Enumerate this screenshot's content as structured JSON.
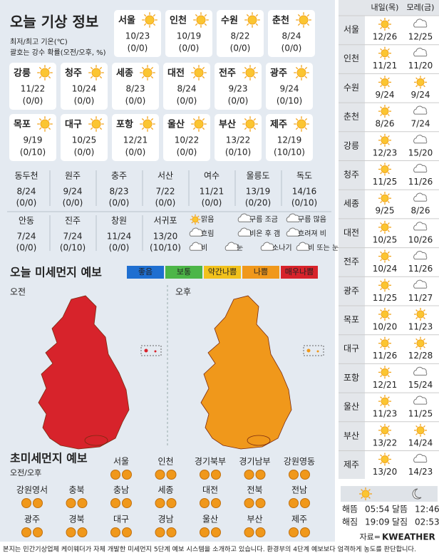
{
  "title": "오늘 기상 정보",
  "notes": [
    "최저/최고 기온(℃)",
    "괄호는 강수 확률(오전/오후, %)"
  ],
  "main_cities": [
    {
      "name": "서울",
      "temp": "10/23",
      "rain": "(0/0)"
    },
    {
      "name": "인천",
      "temp": "10/19",
      "rain": "(0/0)"
    },
    {
      "name": "수원",
      "temp": "8/22",
      "rain": "(0/0)"
    },
    {
      "name": "춘천",
      "temp": "8/24",
      "rain": "(0/0)"
    },
    {
      "name": "강릉",
      "temp": "11/22",
      "rain": "(0/0)"
    },
    {
      "name": "청주",
      "temp": "10/24",
      "rain": "(0/0)"
    },
    {
      "name": "세종",
      "temp": "8/23",
      "rain": "(0/0)"
    },
    {
      "name": "대전",
      "temp": "8/24",
      "rain": "(0/0)"
    },
    {
      "name": "전주",
      "temp": "9/23",
      "rain": "(0/0)"
    },
    {
      "name": "광주",
      "temp": "9/24",
      "rain": "(0/10)"
    },
    {
      "name": "목포",
      "temp": "9/19",
      "rain": "(0/10)"
    },
    {
      "name": "대구",
      "temp": "10/25",
      "rain": "(0/0)"
    },
    {
      "name": "포항",
      "temp": "12/21",
      "rain": "(0/0)"
    },
    {
      "name": "울산",
      "temp": "10/22",
      "rain": "(0/0)"
    },
    {
      "name": "부산",
      "temp": "13/22",
      "rain": "(0/10)"
    },
    {
      "name": "제주",
      "temp": "12/19",
      "rain": "(10/10)"
    }
  ],
  "other_cities": [
    {
      "name": "동두천",
      "temp": "8/24",
      "rain": "(0/0)"
    },
    {
      "name": "원주",
      "temp": "9/24",
      "rain": "(0/0)"
    },
    {
      "name": "충주",
      "temp": "8/23",
      "rain": "(0/0)"
    },
    {
      "name": "서산",
      "temp": "7/22",
      "rain": "(0/0)"
    },
    {
      "name": "여수",
      "temp": "11/21",
      "rain": "(0/0)"
    },
    {
      "name": "울릉도",
      "temp": "13/19",
      "rain": "(0/20)"
    },
    {
      "name": "독도",
      "temp": "14/16",
      "rain": "(0/10)"
    },
    {
      "name": "안동",
      "temp": "7/24",
      "rain": "(0/0)"
    },
    {
      "name": "진주",
      "temp": "7/24",
      "rain": "(0/10)"
    },
    {
      "name": "창원",
      "temp": "11/24",
      "rain": "(0/0)"
    },
    {
      "name": "서귀포",
      "temp": "13/20",
      "rain": "(10/10)"
    }
  ],
  "legend": [
    "맑음",
    "구름 조금",
    "구름 많음",
    "흐림",
    "비온 후 갬",
    "흐려져 비",
    "비",
    "눈",
    "소나기",
    "비 또는 눈"
  ],
  "dust": {
    "title": "오늘 미세먼지 예보",
    "am": "오전",
    "pm": "오후",
    "scale": [
      {
        "label": "좋음",
        "color": "#1f6fd1"
      },
      {
        "label": "보통",
        "color": "#4cb648"
      },
      {
        "label": "약간나쁨",
        "color": "#f1c11c"
      },
      {
        "label": "나쁨",
        "color": "#f0981b"
      },
      {
        "label": "매우나쁨",
        "color": "#d7232b"
      }
    ]
  },
  "fine_dust": {
    "title": "초미세먼지 예보",
    "subtitle": "오전/오후",
    "regions": [
      "서울",
      "인천",
      "경기북부",
      "경기남부",
      "강원영동",
      "강원영서",
      "충북",
      "충남",
      "세종",
      "대전",
      "전북",
      "전남",
      "광주",
      "경북",
      "대구",
      "경남",
      "울산",
      "부산",
      "제주"
    ]
  },
  "footer": "본지는 민간기상업체 케이웨더가 자체 개발한 미세먼지 5단계 예보 시스템을 소개하고 있습니다. 환경부의 4단계 예보보다 엄격하게 농도를 판단합니다.",
  "forecast": {
    "headers": [
      "내일(목)",
      "모레(금)"
    ],
    "rows": [
      {
        "city": "서울",
        "tomorrow": "12/26",
        "after": "12/25"
      },
      {
        "city": "인천",
        "tomorrow": "11/21",
        "after": "11/20"
      },
      {
        "city": "수원",
        "tomorrow": "9/24",
        "after": "9/24"
      },
      {
        "city": "춘천",
        "tomorrow": "8/26",
        "after": "7/24"
      },
      {
        "city": "강릉",
        "tomorrow": "12/23",
        "after": "15/20"
      },
      {
        "city": "청주",
        "tomorrow": "11/25",
        "after": "11/26"
      },
      {
        "city": "세종",
        "tomorrow": "9/25",
        "after": "8/26"
      },
      {
        "city": "대전",
        "tomorrow": "10/25",
        "after": "10/26"
      },
      {
        "city": "전주",
        "tomorrow": "10/24",
        "after": "11/26"
      },
      {
        "city": "광주",
        "tomorrow": "11/25",
        "after": "11/27"
      },
      {
        "city": "목포",
        "tomorrow": "10/20",
        "after": "11/23"
      },
      {
        "city": "대구",
        "tomorrow": "11/26",
        "after": "12/28"
      },
      {
        "city": "포항",
        "tomorrow": "12/21",
        "after": "15/24"
      },
      {
        "city": "울산",
        "tomorrow": "11/23",
        "after": "11/25"
      },
      {
        "city": "부산",
        "tomorrow": "13/22",
        "after": "14/24"
      },
      {
        "city": "제주",
        "tomorrow": "13/20",
        "after": "14/23"
      }
    ]
  },
  "astro": [
    {
      "label": "해뜸",
      "time": "05:54"
    },
    {
      "label": "해짐",
      "time": "19:09"
    },
    {
      "label": "달뜸",
      "time": "12:46"
    },
    {
      "label": "달짐",
      "time": "02:53"
    }
  ],
  "source": "자료=",
  "logo": "KWEATHER"
}
